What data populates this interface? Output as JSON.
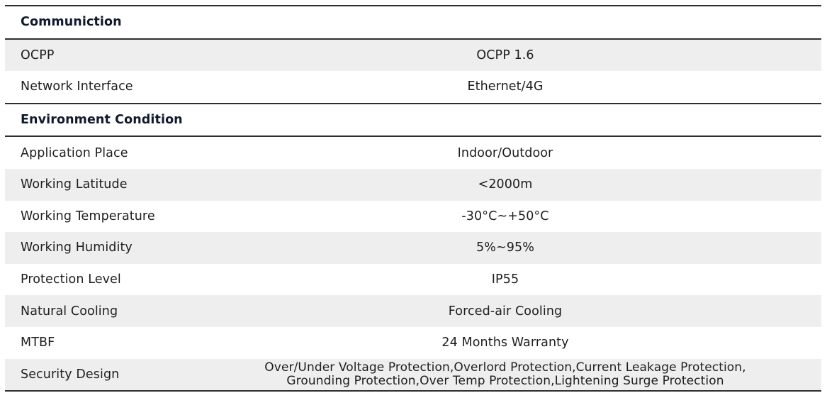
{
  "sections": [
    {
      "title": "Communiction",
      "rows": [
        {
          "label": "OCPP",
          "value": "OCPP 1.6"
        },
        {
          "label": "Network Interface",
          "value": "Ethernet/4G"
        }
      ]
    },
    {
      "title": "Environment Condition",
      "rows": [
        {
          "label": "Application Place",
          "value": "Indoor/Outdoor"
        },
        {
          "label": "Working Latitude",
          "value": "<2000m"
        },
        {
          "label": "Working Temperature",
          "value": "-30°C~+50°C"
        },
        {
          "label": "Working Humidity",
          "value": "5%~95%"
        },
        {
          "label": "Protection Level",
          "value": "IP55"
        },
        {
          "label": "Natural Cooling",
          "value": "Forced-air Cooling"
        },
        {
          "label": "MTBF",
          "value": "24 Months Warranty"
        },
        {
          "label": "Security Design",
          "value_lines": [
            "Over/Under Voltage Protection,Overlord Protection,Current Leakage Protection,",
            "Grounding Protection,Over Temp Protection,Lightening Surge Protection"
          ]
        }
      ]
    }
  ],
  "colors": {
    "rule": "#2f2f2f",
    "shade": "#eeeeee",
    "text": "#1e1e1e"
  }
}
